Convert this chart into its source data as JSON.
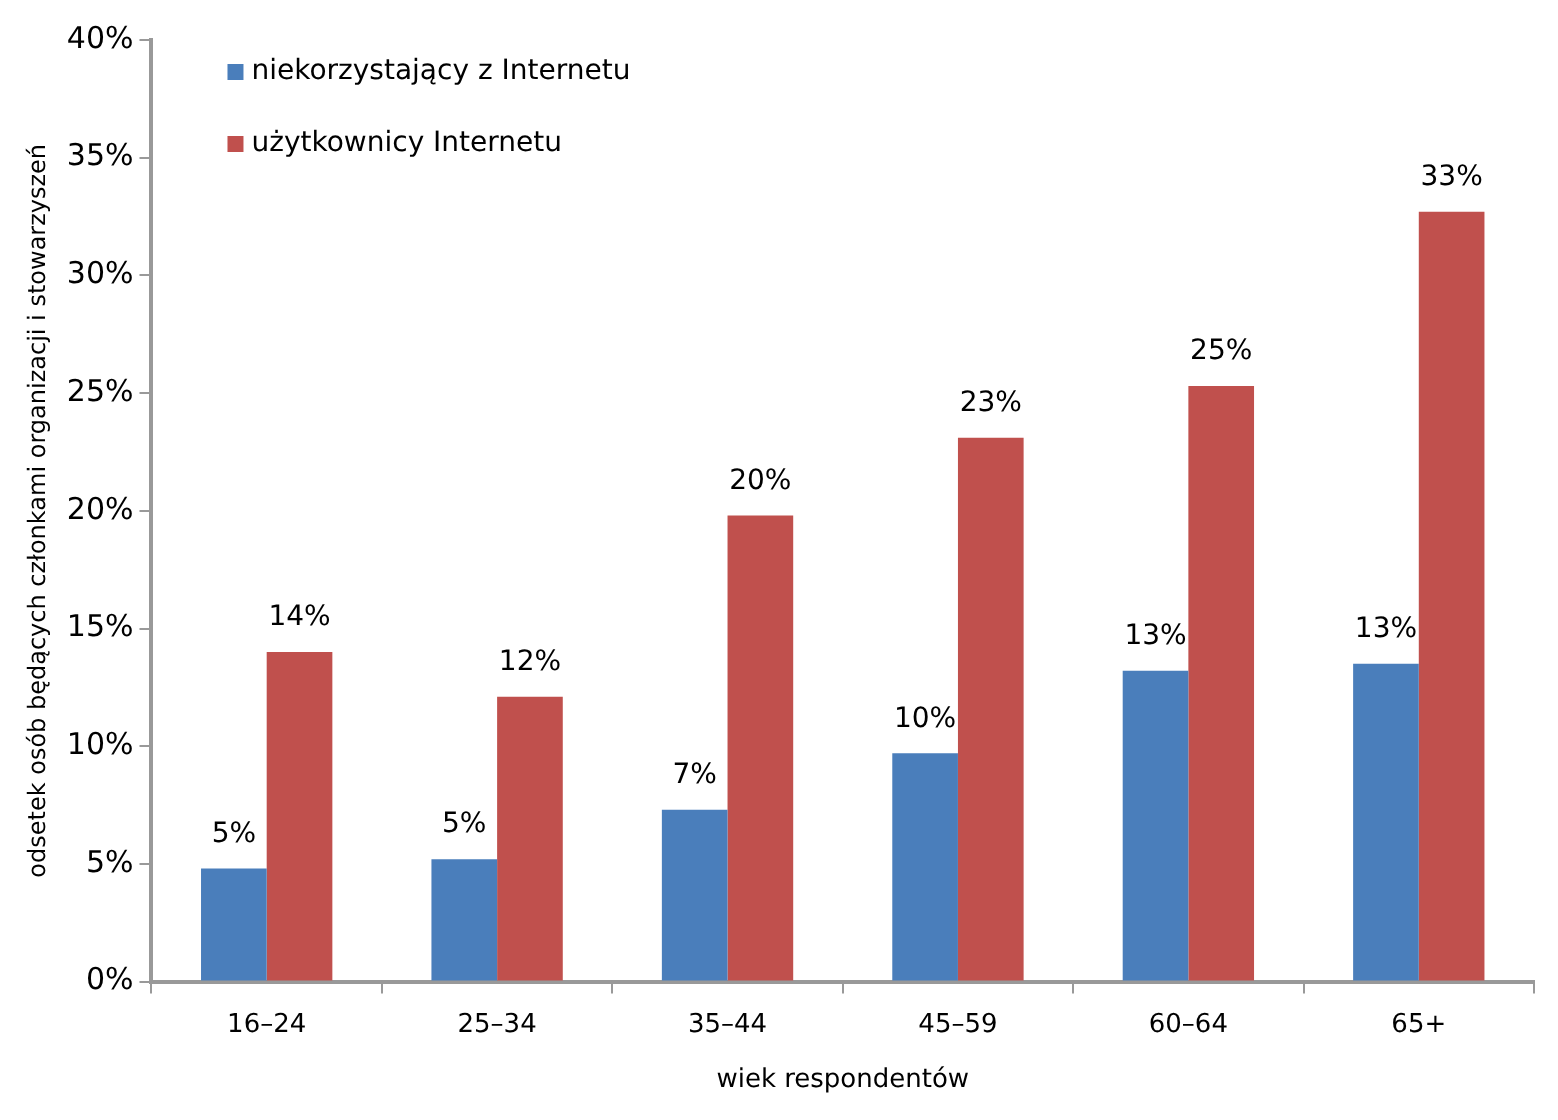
{
  "chart_data": {
    "type": "bar",
    "xlabel": "wiek respondentów",
    "ylabel": "odsetek osób będących członkami organizacji i stowarzyszeń",
    "categories": [
      "16–24",
      "25–34",
      "35–44",
      "45–59",
      "60–64",
      "65+"
    ],
    "series": [
      {
        "name": "niekorzystający z Internetu",
        "color": "#4a7ebb",
        "values": [
          4.8,
          5.2,
          7.3,
          9.7,
          13.2,
          13.5
        ],
        "value_labels": [
          "5%",
          "5%",
          "7%",
          "10%",
          "13%",
          "13%"
        ]
      },
      {
        "name": "użytkownicy Internetu",
        "color": "#c0504d",
        "values": [
          14.0,
          12.1,
          19.8,
          23.1,
          25.3,
          32.7
        ],
        "value_labels": [
          "14%",
          "12%",
          "20%",
          "23%",
          "25%",
          "33%"
        ]
      }
    ],
    "ylim": [
      0,
      40
    ],
    "yticks": [
      {
        "value": 0,
        "label": "0%"
      },
      {
        "value": 5,
        "label": "5%"
      },
      {
        "value": 10,
        "label": "10%"
      },
      {
        "value": 15,
        "label": "15%"
      },
      {
        "value": 20,
        "label": "20%"
      },
      {
        "value": 25,
        "label": "25%"
      },
      {
        "value": 30,
        "label": "30%"
      },
      {
        "value": 35,
        "label": "35%"
      },
      {
        "value": 40,
        "label": "40%"
      }
    ],
    "grid": false,
    "legend": "top left"
  }
}
